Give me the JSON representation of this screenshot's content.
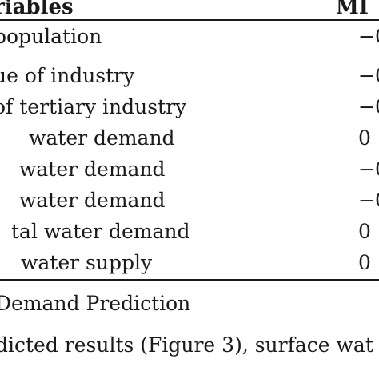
{
  "table": {
    "header": {
      "variable": "riables",
      "value": "MI"
    },
    "rows": [
      {
        "variable": "population",
        "value": "−0"
      },
      {
        "variable": "ue of industry",
        "value": "−0"
      },
      {
        "variable": "of tertiary industry",
        "value": "−0"
      },
      {
        "variable": "water demand",
        "value": "0"
      },
      {
        "variable": "water demand",
        "value": "−0"
      },
      {
        "variable": "water demand",
        "value": "−0"
      },
      {
        "variable": "tal water demand",
        "value": "0"
      },
      {
        "variable": "water supply",
        "value": "0"
      }
    ]
  },
  "text": {
    "section_title": "Demand Prediction",
    "body": "dicted results (Figure 3), surface wat"
  }
}
